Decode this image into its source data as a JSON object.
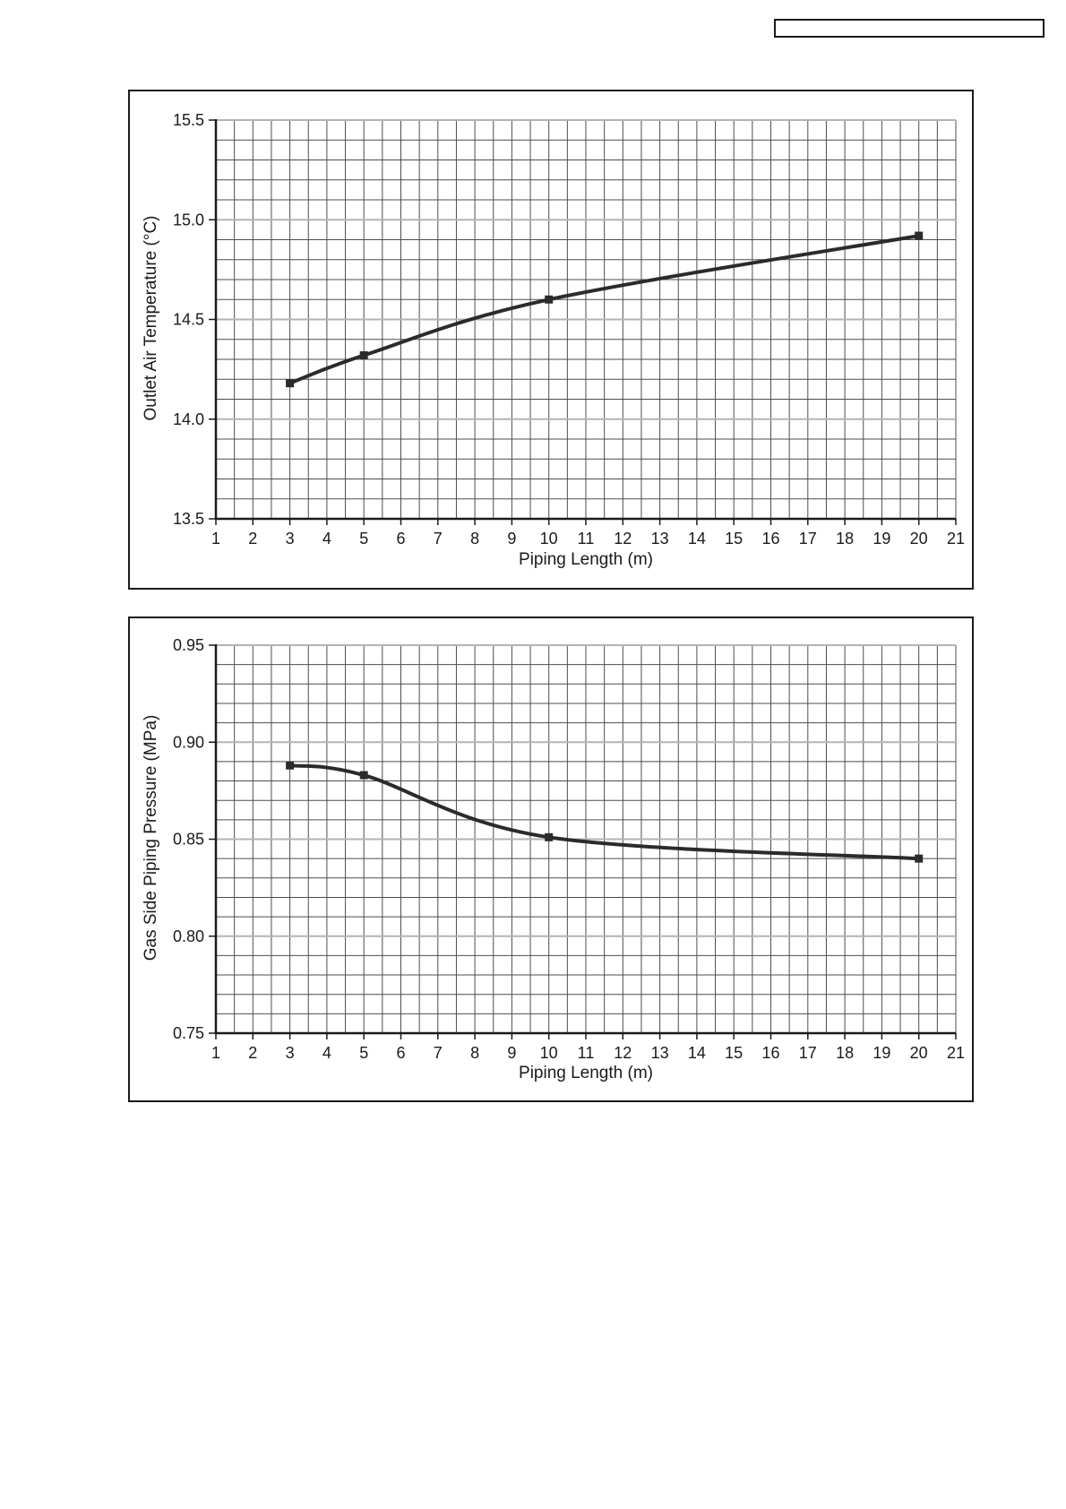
{
  "page": {
    "background": "#ffffff"
  },
  "colors": {
    "line": "#2b2b2b",
    "marker": "#2b2b2b",
    "grid_minor": "#4d4d4d",
    "grid_major": "#b3b3b3",
    "axis": "#1a1a1a",
    "border": "#1a1a1a",
    "text": "#1a1a1a"
  },
  "chart_data": [
    {
      "type": "line",
      "title": "",
      "xlabel": "Piping Length (m)",
      "ylabel": "Outlet Air Temperature (°C)",
      "xlim": [
        1,
        21
      ],
      "ylim": [
        13.5,
        15.5
      ],
      "x_tick_step": 1,
      "x_tick_labels": [
        "1",
        "2",
        "3",
        "4",
        "5",
        "6",
        "7",
        "8",
        "9",
        "10",
        "11",
        "12",
        "13",
        "14",
        "15",
        "16",
        "17",
        "18",
        "19",
        "20",
        "21"
      ],
      "y_tick_step": 0.5,
      "y_tick_labels": [
        "13.5",
        "14.0",
        "14.5",
        "15.0",
        "15.5"
      ],
      "minor_x_step": 0.5,
      "minor_y_step": 0.1,
      "grid": true,
      "legend": false,
      "series": [
        {
          "marker": "square",
          "points": [
            [
              3,
              14.18
            ],
            [
              5,
              14.32
            ],
            [
              10,
              14.6
            ],
            [
              20,
              14.92
            ]
          ]
        }
      ]
    },
    {
      "type": "line",
      "title": "",
      "xlabel": "Piping Length (m)",
      "ylabel": "Gas Side Piping Pressure (MPa)",
      "xlim": [
        1,
        21
      ],
      "ylim": [
        0.75,
        0.95
      ],
      "x_tick_step": 1,
      "x_tick_labels": [
        "1",
        "2",
        "3",
        "4",
        "5",
        "6",
        "7",
        "8",
        "9",
        "10",
        "11",
        "12",
        "13",
        "14",
        "15",
        "16",
        "17",
        "18",
        "19",
        "20",
        "21"
      ],
      "y_tick_step": 0.05,
      "y_tick_labels": [
        "0.75",
        "0.80",
        "0.85",
        "0.90",
        "0.95"
      ],
      "minor_x_step": 0.5,
      "minor_y_step": 0.01,
      "grid": true,
      "legend": false,
      "series": [
        {
          "marker": "square",
          "points": [
            [
              3,
              0.888
            ],
            [
              5,
              0.883
            ],
            [
              10,
              0.851
            ],
            [
              20,
              0.84
            ]
          ]
        }
      ]
    }
  ]
}
